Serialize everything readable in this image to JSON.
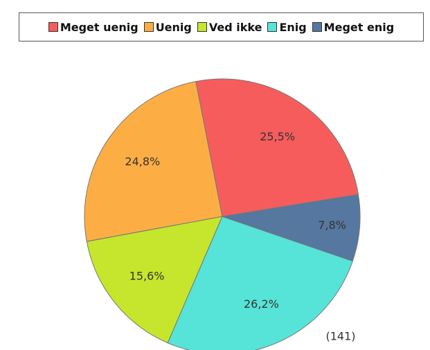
{
  "chart_data": {
    "type": "pie",
    "categories": [
      "Meget uenig",
      "Uenig",
      "Ved ikke",
      "Enig",
      "Meget enig"
    ],
    "values": [
      25.5,
      24.8,
      15.6,
      26.2,
      7.8
    ],
    "value_labels": [
      "25,5%",
      "24,8%",
      "15,6%",
      "26,2%",
      "7,8%"
    ],
    "colors": [
      "#f65c5c",
      "#fcae45",
      "#c5e62c",
      "#56e3d8",
      "#5577a0"
    ],
    "annotation": "(141)",
    "legend": "top"
  }
}
